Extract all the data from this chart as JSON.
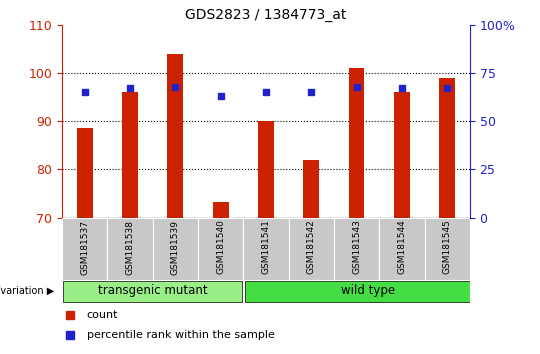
{
  "title": "GDS2823 / 1384773_at",
  "samples": [
    "GSM181537",
    "GSM181538",
    "GSM181539",
    "GSM181540",
    "GSM181541",
    "GSM181542",
    "GSM181543",
    "GSM181544",
    "GSM181545"
  ],
  "counts": [
    88.5,
    96.0,
    104.0,
    73.2,
    90.0,
    82.0,
    101.0,
    96.0,
    99.0
  ],
  "percentile_ranks": [
    65,
    67,
    67.5,
    63,
    65,
    65,
    67.5,
    67,
    67
  ],
  "bar_color": "#cc2200",
  "dot_color": "#2222cc",
  "ylim_left": [
    70,
    110
  ],
  "ylim_right": [
    0,
    100
  ],
  "yticks_left": [
    70,
    80,
    90,
    100,
    110
  ],
  "yticks_right": [
    0,
    25,
    50,
    75,
    100
  ],
  "group_labels": [
    "transgenic mutant",
    "wild type"
  ],
  "group_n": [
    4,
    5
  ],
  "group_colors": [
    "#99ee88",
    "#44dd44"
  ],
  "genotype_label": "genotype/variation",
  "left_axis_color": "#cc2200",
  "right_axis_color": "#2222cc",
  "xtick_bg": "#c8c8c8",
  "bar_width": 0.12
}
